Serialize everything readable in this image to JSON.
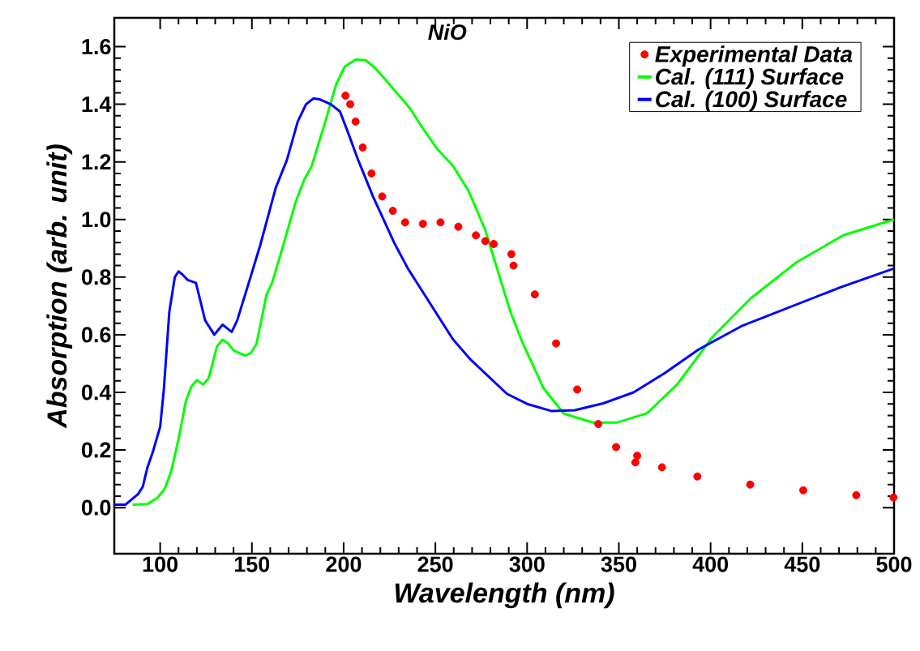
{
  "chart_data": {
    "type": "line",
    "title": "NiO",
    "xlabel": "Wavelength (nm)",
    "ylabel": "Absorption (arb. unit)",
    "xlim": [
      75,
      500
    ],
    "ylim": [
      -0.16,
      1.7
    ],
    "xticks": [
      100,
      150,
      200,
      250,
      300,
      350,
      400,
      450,
      500
    ],
    "yticks": [
      {
        "value": 0,
        "label": "0.0"
      },
      0.2,
      0.4,
      0.6,
      0.8,
      {
        "value": 1,
        "label": "1.0"
      },
      1.2,
      1.4,
      1.6
    ],
    "legend": "top right",
    "series": [
      {
        "name": "Experimental Data",
        "type": "scatter",
        "marker": "circle",
        "color": "#ff0000",
        "x": [
          201,
          203.6,
          206.5,
          210.4,
          215.2,
          221,
          226.8,
          233.5,
          243.2,
          252.8,
          262.5,
          272.1,
          277.2,
          281.8,
          291.4,
          292.6,
          304.2,
          315.8,
          327.3,
          338.8,
          348.5,
          359,
          360,
          373.5,
          392.8,
          421.6,
          450.5,
          479.4,
          499.7
        ],
        "values": [
          1.43,
          1.4,
          1.34,
          1.25,
          1.16,
          1.08,
          1.03,
          0.99,
          0.985,
          0.99,
          0.975,
          0.945,
          0.925,
          0.915,
          0.88,
          0.84,
          0.74,
          0.57,
          0.41,
          0.29,
          0.21,
          0.157,
          0.18,
          0.14,
          0.108,
          0.08,
          0.06,
          0.043,
          0.035
        ]
      },
      {
        "name": "Cal. (111) Surface",
        "type": "line",
        "color": "#00ff00",
        "x": [
          85,
          93,
          98.5,
          102.5,
          106,
          110,
          114,
          117,
          120,
          123.5,
          126.5,
          131,
          134,
          137,
          140,
          143,
          146.5,
          149.5,
          152.5,
          158,
          161,
          166,
          174,
          178.5,
          182.5,
          190,
          196,
          200.5,
          206.5,
          212,
          217,
          224,
          236,
          243,
          251,
          259.5,
          268,
          277,
          291,
          297,
          309,
          320,
          336,
          349,
          365.5,
          382,
          401,
          422,
          446.5,
          472.5,
          500
        ],
        "values": [
          0.01,
          0.012,
          0.034,
          0.065,
          0.126,
          0.237,
          0.37,
          0.42,
          0.443,
          0.427,
          0.45,
          0.56,
          0.583,
          0.57,
          0.546,
          0.537,
          0.528,
          0.537,
          0.568,
          0.74,
          0.78,
          0.887,
          1.064,
          1.138,
          1.184,
          1.34,
          1.47,
          1.53,
          1.555,
          1.553,
          1.527,
          1.476,
          1.387,
          1.318,
          1.245,
          1.187,
          1.1,
          0.967,
          0.678,
          0.58,
          0.414,
          0.326,
          0.295,
          0.295,
          0.328,
          0.429,
          0.592,
          0.727,
          0.85,
          0.946,
          1.0
        ]
      },
      {
        "name": "Cal. (100) Surface",
        "type": "line",
        "color": "#0000ff",
        "x": [
          75,
          81,
          88,
          90.5,
          93,
          96,
          98,
          100,
          102,
          105,
          108,
          110,
          112,
          115,
          119.5,
          124.5,
          129.5,
          134,
          139,
          142,
          149,
          154.5,
          163,
          169,
          175,
          179.5,
          183.5,
          187,
          193,
          198,
          202.5,
          208,
          216,
          227.5,
          235,
          250,
          259.5,
          269,
          289,
          300,
          313.5,
          326,
          341.5,
          358,
          375,
          393.5,
          417.5,
          470.5,
          500
        ],
        "values": [
          0.01,
          0.01,
          0.047,
          0.072,
          0.138,
          0.193,
          0.237,
          0.28,
          0.41,
          0.68,
          0.8,
          0.82,
          0.81,
          0.79,
          0.78,
          0.65,
          0.6,
          0.635,
          0.61,
          0.65,
          0.795,
          0.91,
          1.11,
          1.205,
          1.34,
          1.4,
          1.42,
          1.417,
          1.4,
          1.375,
          1.3,
          1.205,
          1.08,
          0.92,
          0.83,
          0.68,
          0.585,
          0.515,
          0.395,
          0.36,
          0.335,
          0.338,
          0.362,
          0.4,
          0.467,
          0.549,
          0.632,
          0.764,
          0.83
        ]
      }
    ]
  }
}
